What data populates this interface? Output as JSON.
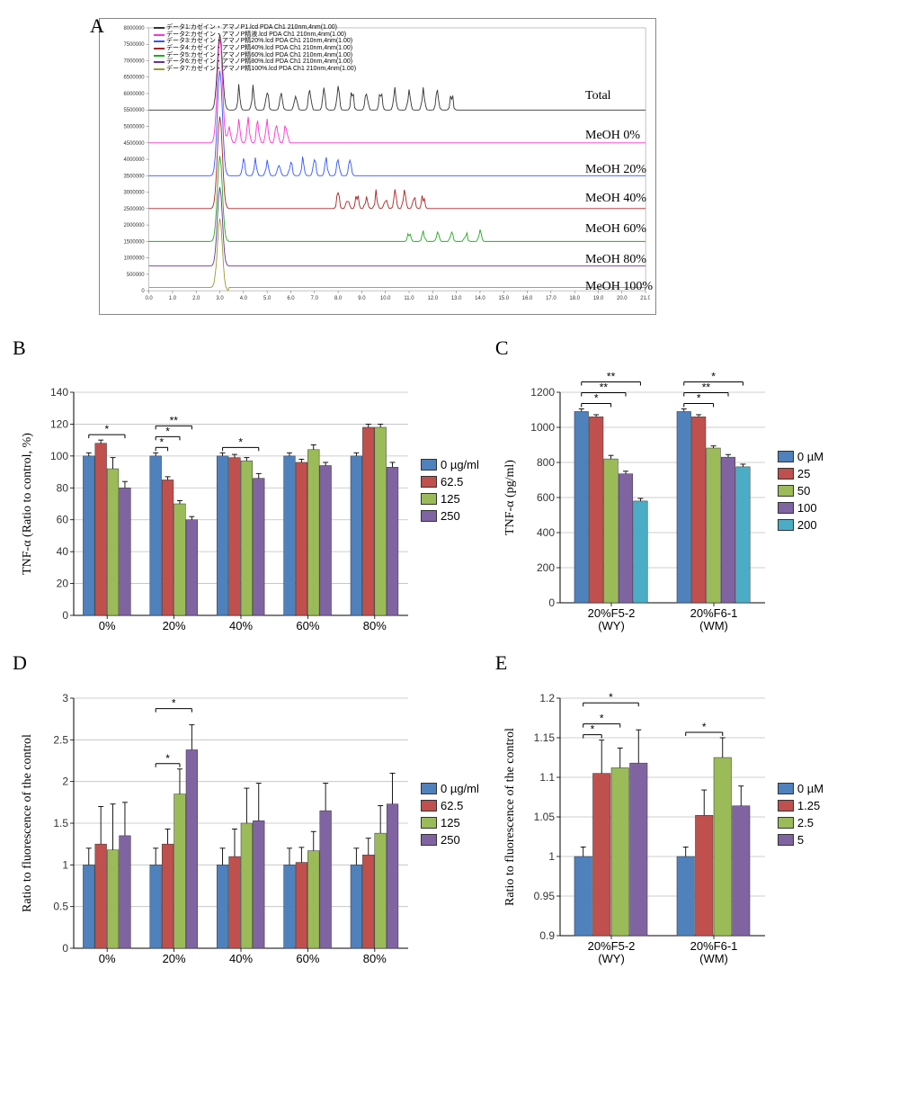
{
  "panelA": {
    "label": "A",
    "yticks": [
      0,
      500000,
      1000000,
      1500000,
      2000000,
      2500000,
      3000000,
      3500000,
      4000000,
      4500000,
      5000000,
      5500000,
      6000000,
      6500000,
      7000000,
      7500000,
      8000000
    ],
    "ytick_labels": [
      "0",
      "500000",
      "1000000",
      "1500000",
      "2000000",
      "2500000",
      "3000000",
      "3500000",
      "4000000",
      "4500000",
      "5000000",
      "5500000",
      "6000000",
      "6500000",
      "7000000",
      "7500000",
      "8000000"
    ],
    "xmin": 0,
    "xmax": 21,
    "xtick_step": 1.0,
    "legend_items": [
      {
        "color": "#333333",
        "text": "データ1:カゼイン・アマノP1.lcd PDA Ch1 210nm,4nm(1.00)"
      },
      {
        "color": "#ff33cc",
        "text": "データ2:カゼイン・アマノP精液.lcd PDA Ch1 210nm,4nm(1.00)"
      },
      {
        "color": "#3355ff",
        "text": "データ3:カゼイン・アマノP精20%.lcd PDA Ch1 210nm,4nm(1.00)"
      },
      {
        "color": "#aa2222",
        "text": "データ4:カゼイン・アマノP精40%.lcd PDA Ch1 210nm,4nm(1.00)"
      },
      {
        "color": "#22aa22",
        "text": "データ5:カゼイン・アマノP精60%.lcd PDA Ch1 210nm,4nm(1.00)"
      },
      {
        "color": "#663399",
        "text": "データ6:カゼイン・アマノP精80%.lcd PDA Ch1 210nm,4nm(1.00)"
      },
      {
        "color": "#999933",
        "text": "データ7:カゼイン・アマノP精100%.lcd PDA Ch1 210nm,4nm(1.00)"
      }
    ],
    "trace_labels": [
      {
        "text": "Total",
        "y": 86,
        "x": 580
      },
      {
        "text": "MeOH 0%",
        "y": 130,
        "x": 580
      },
      {
        "text": "MeOH 20%",
        "y": 168,
        "x": 580
      },
      {
        "text": "MeOH 40%",
        "y": 200,
        "x": 580
      },
      {
        "text": "MeOH 60%",
        "y": 234,
        "x": 580
      },
      {
        "text": "MeOH 80%",
        "y": 268,
        "x": 580
      },
      {
        "text": "MeOH 100%",
        "y": 298,
        "x": 580
      }
    ],
    "traces": [
      {
        "color": "#333333",
        "baseline": 5500000,
        "peaks": "noisy-high"
      },
      {
        "color": "#ff33cc",
        "baseline": 4500000,
        "peaks": "early"
      },
      {
        "color": "#3355ff",
        "baseline": 3500000,
        "peaks": "mid"
      },
      {
        "color": "#aa2222",
        "baseline": 2500000,
        "peaks": "late"
      },
      {
        "color": "#22aa22",
        "baseline": 1500000,
        "peaks": "sparse"
      },
      {
        "color": "#663399",
        "baseline": 750000,
        "peaks": "flat"
      },
      {
        "color": "#999933",
        "baseline": 100000,
        "peaks": "dip"
      }
    ]
  },
  "panelB": {
    "label": "B",
    "ylabel": "TNF-α (Ratio to control, %)",
    "ymin": 0,
    "ymax": 140,
    "ytick_step": 20,
    "categories": [
      "0%",
      "20%",
      "40%",
      "60%",
      "80%"
    ],
    "legend_title": "",
    "legend_items": [
      "0 µg/ml",
      "62.5",
      "125",
      "250"
    ],
    "colors": [
      "#4f81bd",
      "#c0504d",
      "#9bbb59",
      "#8064a2"
    ],
    "series": [
      {
        "vals": [
          100,
          108,
          92,
          80
        ],
        "errs": [
          2,
          2,
          7,
          4
        ]
      },
      {
        "vals": [
          100,
          85,
          70,
          60
        ],
        "errs": [
          2,
          2,
          2,
          2
        ]
      },
      {
        "vals": [
          100,
          99,
          97,
          86
        ],
        "errs": [
          2,
          2,
          2,
          3
        ]
      },
      {
        "vals": [
          100,
          96,
          104,
          94
        ],
        "errs": [
          2,
          2,
          3,
          2
        ]
      },
      {
        "vals": [
          100,
          118,
          118,
          93
        ],
        "errs": [
          2,
          2,
          2,
          3
        ]
      }
    ],
    "sig": [
      {
        "group": 0,
        "from": 0,
        "to": 3,
        "stars": "*",
        "level": 0
      },
      {
        "group": 1,
        "from": 0,
        "to": 1,
        "stars": "*",
        "level": 0
      },
      {
        "group": 1,
        "from": 0,
        "to": 2,
        "stars": "*",
        "level": 1
      },
      {
        "group": 1,
        "from": 0,
        "to": 3,
        "stars": "**",
        "level": 2
      },
      {
        "group": 2,
        "from": 0,
        "to": 3,
        "stars": "*",
        "level": 0
      }
    ]
  },
  "panelC": {
    "label": "C",
    "ylabel": "TNF-α (pg/ml)",
    "ymin": 0,
    "ymax": 1200,
    "ytick_step": 200,
    "categories": [
      "20%F5-2\n(WY)",
      "20%F6-1\n(WM)"
    ],
    "legend_items": [
      "0 µM",
      "25",
      "50",
      "100",
      "200"
    ],
    "colors": [
      "#4f81bd",
      "#c0504d",
      "#9bbb59",
      "#8064a2",
      "#4bacc6"
    ],
    "series": [
      {
        "vals": [
          1090,
          1060,
          820,
          735,
          580
        ],
        "errs": [
          15,
          12,
          20,
          15,
          15
        ]
      },
      {
        "vals": [
          1090,
          1060,
          882,
          830,
          775
        ],
        "errs": [
          15,
          12,
          12,
          15,
          15
        ]
      }
    ],
    "sig": [
      {
        "group": 0,
        "from": 0,
        "to": 2,
        "stars": "*",
        "level": 0
      },
      {
        "group": 0,
        "from": 0,
        "to": 3,
        "stars": "**",
        "level": 1
      },
      {
        "group": 0,
        "from": 0,
        "to": 4,
        "stars": "**",
        "level": 2
      },
      {
        "group": 1,
        "from": 0,
        "to": 2,
        "stars": "*",
        "level": 0
      },
      {
        "group": 1,
        "from": 0,
        "to": 3,
        "stars": "**",
        "level": 1
      },
      {
        "group": 1,
        "from": 0,
        "to": 4,
        "stars": "*",
        "level": 2
      }
    ]
  },
  "panelD": {
    "label": "D",
    "ylabel": "Ratio to fluorescence of the control",
    "ymin": 0,
    "ymax": 3,
    "ytick_step": 0.5,
    "categories": [
      "0%",
      "20%",
      "40%",
      "60%",
      "80%"
    ],
    "legend_items": [
      "0 µg/ml",
      "62.5",
      "125",
      "250"
    ],
    "colors": [
      "#4f81bd",
      "#c0504d",
      "#9bbb59",
      "#8064a2"
    ],
    "series": [
      {
        "vals": [
          1.0,
          1.25,
          1.18,
          1.35
        ],
        "errs": [
          0.2,
          0.45,
          0.55,
          0.4
        ]
      },
      {
        "vals": [
          1.0,
          1.25,
          1.85,
          2.38
        ],
        "errs": [
          0.2,
          0.18,
          0.3,
          0.3
        ]
      },
      {
        "vals": [
          1.0,
          1.1,
          1.5,
          1.53
        ],
        "errs": [
          0.2,
          0.33,
          0.42,
          0.45
        ]
      },
      {
        "vals": [
          1.0,
          1.03,
          1.17,
          1.65
        ],
        "errs": [
          0.2,
          0.18,
          0.23,
          0.33
        ]
      },
      {
        "vals": [
          1.0,
          1.12,
          1.38,
          1.73
        ],
        "errs": [
          0.2,
          0.2,
          0.33,
          0.37
        ]
      }
    ],
    "sig": [
      {
        "group": 1,
        "from": 0,
        "to": 2,
        "stars": "*",
        "level": 0
      },
      {
        "group": 1,
        "from": 0,
        "to": 3,
        "stars": "*",
        "level": 1
      }
    ]
  },
  "panelE": {
    "label": "E",
    "ylabel": "Ratio to fluorescence of the control",
    "ymin": 0.9,
    "ymax": 1.2,
    "ytick_step": 0.05,
    "yticks_custom": [
      0.9,
      0.95,
      1,
      1.05,
      1.1,
      1.15,
      1.2
    ],
    "categories": [
      "20%F5-2\n(WY)",
      "20%F6-1\n(WM)"
    ],
    "legend_items": [
      "0 µM",
      "1.25",
      "2.5",
      "5"
    ],
    "colors": [
      "#4f81bd",
      "#c0504d",
      "#9bbb59",
      "#8064a2"
    ],
    "series": [
      {
        "vals": [
          1.0,
          1.105,
          1.112,
          1.118
        ],
        "errs": [
          0.012,
          0.042,
          0.025,
          0.042
        ]
      },
      {
        "vals": [
          1.0,
          1.052,
          1.125,
          1.064
        ],
        "errs": [
          0.012,
          0.032,
          0.025,
          0.025
        ]
      }
    ],
    "sig": [
      {
        "group": 0,
        "from": 0,
        "to": 1,
        "stars": "*",
        "level": 0
      },
      {
        "group": 0,
        "from": 0,
        "to": 2,
        "stars": "*",
        "level": 1
      },
      {
        "group": 0,
        "from": 0,
        "to": 3,
        "stars": "*",
        "level": 2
      },
      {
        "group": 1,
        "from": 0,
        "to": 2,
        "stars": "*",
        "level": 0
      }
    ]
  }
}
